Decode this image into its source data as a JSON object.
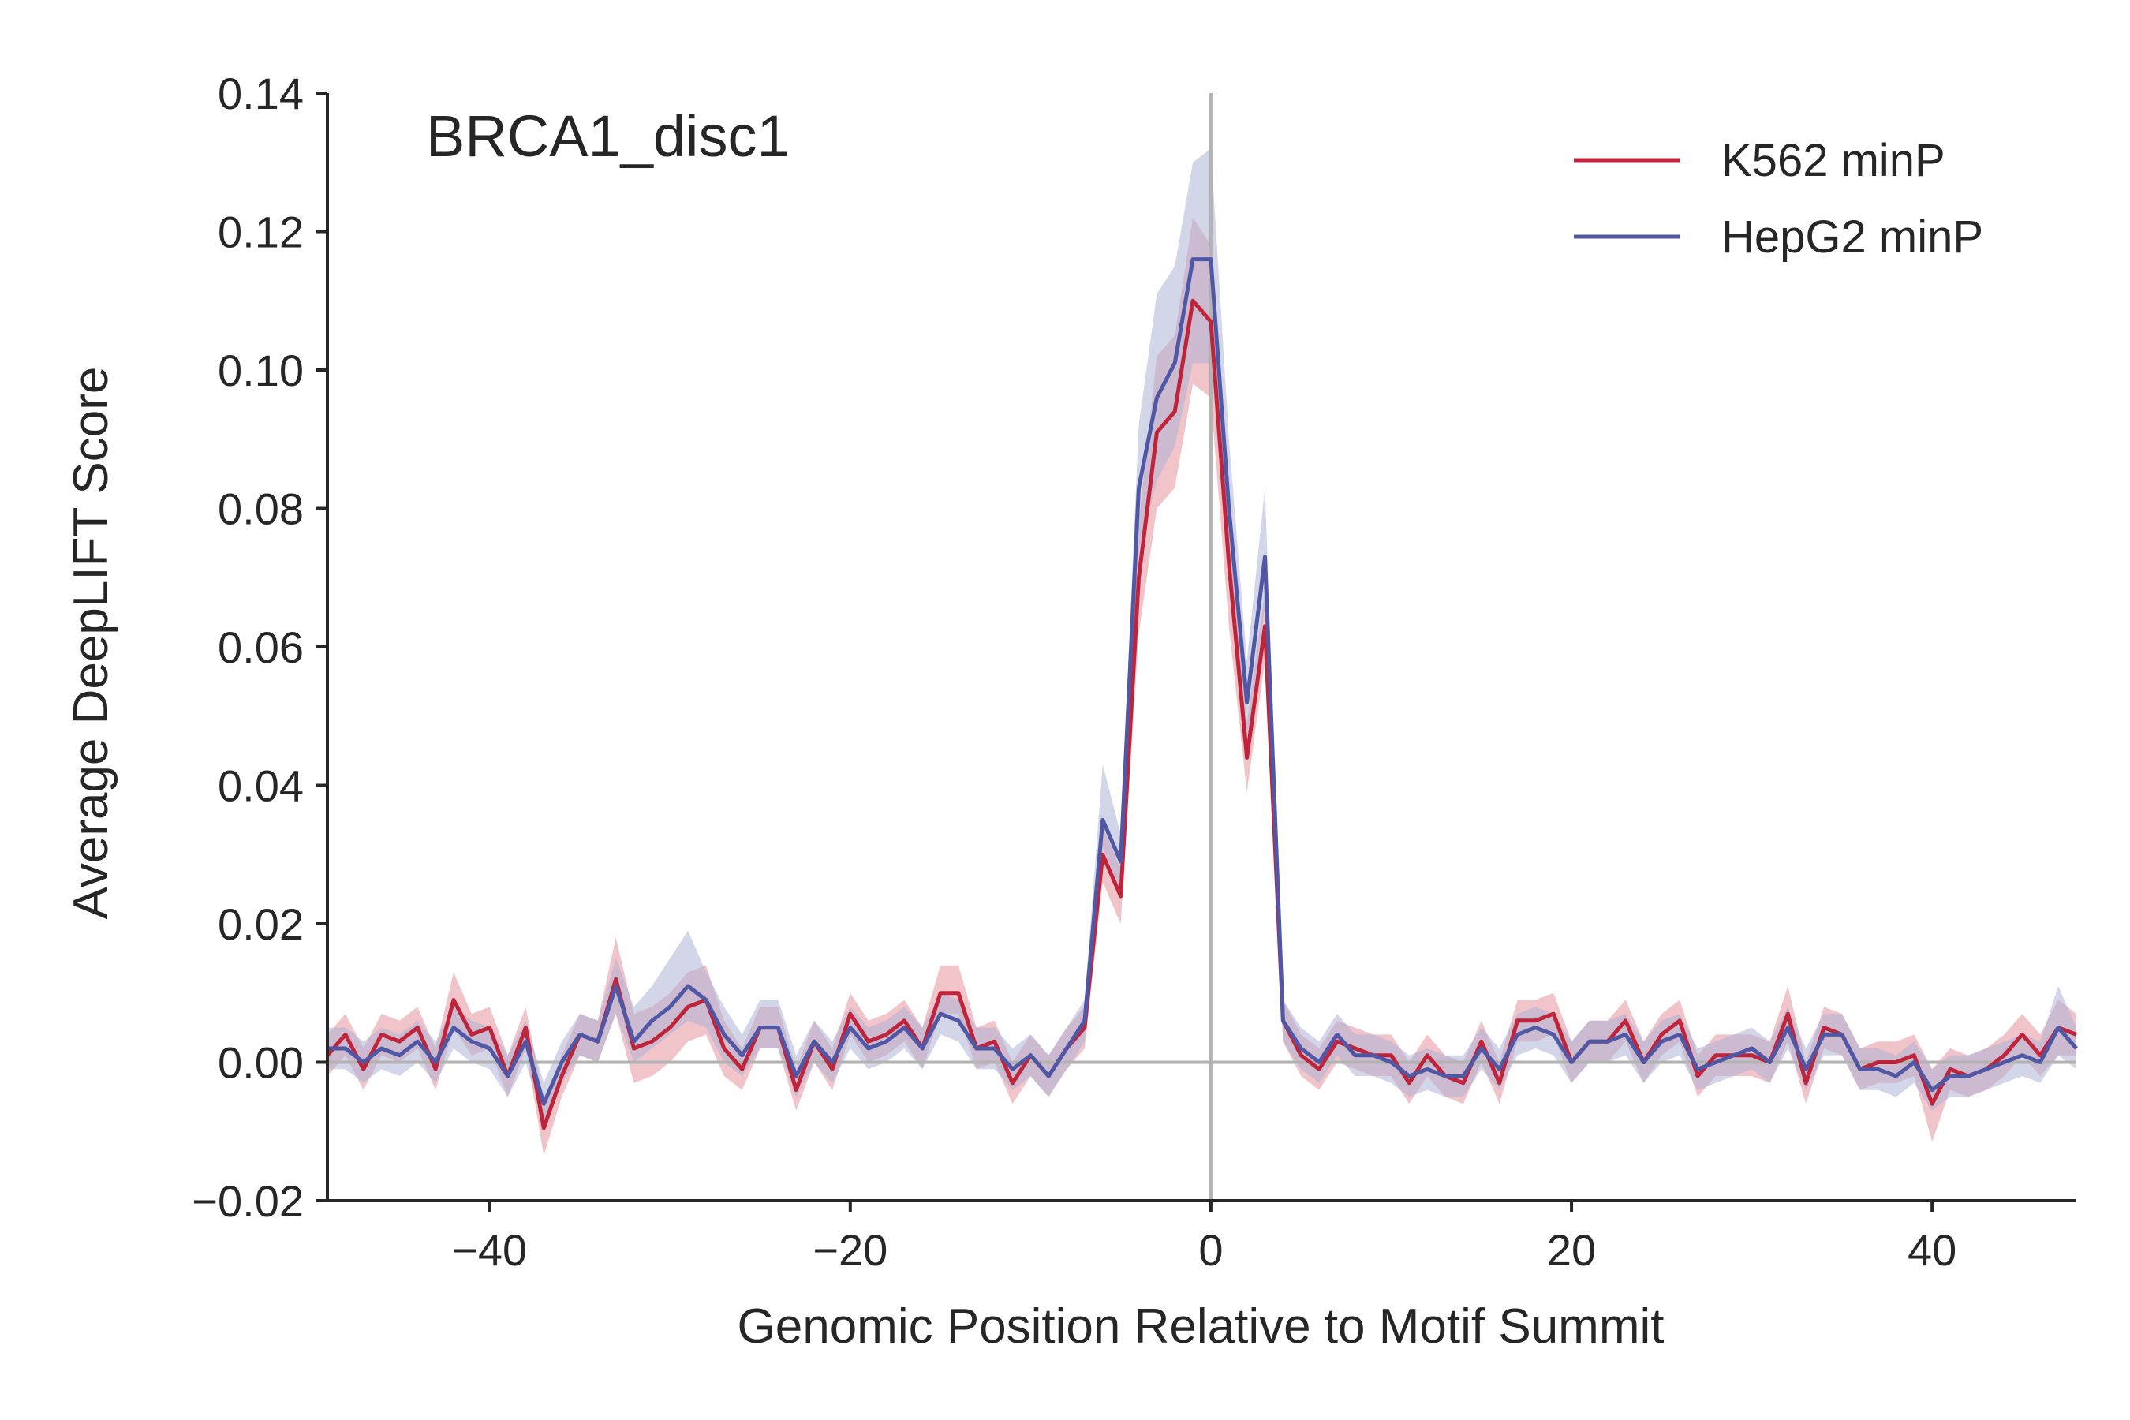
{
  "chart_data": {
    "type": "line",
    "title": "BRCA1_disc1",
    "xlabel": "Genomic Position Relative to Motif Summit",
    "ylabel": "Average DeepLIFT Score",
    "xlim": [
      -49,
      48
    ],
    "ylim": [
      -0.02,
      0.14
    ],
    "xticks": [
      -40,
      -20,
      0,
      20,
      40
    ],
    "xtick_labels": [
      "−40",
      "−20",
      "0",
      "20",
      "40"
    ],
    "yticks": [
      -0.02,
      0.0,
      0.02,
      0.04,
      0.06,
      0.08,
      0.1,
      0.12,
      0.14
    ],
    "ytick_labels": [
      "−0.02",
      "0.00",
      "0.02",
      "0.04",
      "0.06",
      "0.08",
      "0.10",
      "0.12",
      "0.14"
    ],
    "reference_lines": {
      "x": 0,
      "y": 0
    },
    "grid": false,
    "legend_position": "upper right",
    "x": [
      -49,
      -48,
      -47,
      -46,
      -45,
      -44,
      -43,
      -42,
      -41,
      -40,
      -39,
      -38,
      -37,
      -36,
      -35,
      -34,
      -33,
      -32,
      -31,
      -30,
      -29,
      -28,
      -27,
      -26,
      -25,
      -24,
      -23,
      -22,
      -21,
      -20,
      -19,
      -18,
      -17,
      -16,
      -15,
      -14,
      -13,
      -12,
      -11,
      -10,
      -9,
      -8,
      -7,
      -6,
      -5,
      -4,
      -3,
      -2,
      -1,
      0,
      1,
      2,
      3,
      4,
      5,
      6,
      7,
      8,
      9,
      10,
      11,
      12,
      13,
      14,
      15,
      16,
      17,
      18,
      19,
      20,
      21,
      22,
      23,
      24,
      25,
      26,
      27,
      28,
      29,
      30,
      31,
      32,
      33,
      34,
      35,
      36,
      37,
      38,
      39,
      40,
      41,
      42,
      43,
      44,
      45,
      46,
      47,
      48
    ],
    "series": [
      {
        "name": "K562 minP",
        "color": "#c0243a",
        "band_color": "#e3949c",
        "values": [
          0.001,
          0.004,
          -0.001,
          0.004,
          0.003,
          0.005,
          -0.001,
          0.009,
          0.004,
          0.005,
          -0.002,
          0.005,
          -0.0095,
          -0.002,
          0.004,
          0.003,
          0.012,
          0.002,
          0.003,
          0.005,
          0.008,
          0.009,
          0.002,
          -0.001,
          0.005,
          0.005,
          -0.004,
          0.003,
          -0.001,
          0.007,
          0.003,
          0.004,
          0.006,
          0.002,
          0.01,
          0.01,
          0.002,
          0.003,
          -0.003,
          0.001,
          -0.002,
          0.002,
          0.005,
          0.03,
          0.024,
          0.07,
          0.091,
          0.094,
          0.11,
          0.107,
          0.072,
          0.044,
          0.063,
          0.006,
          0.001,
          -0.001,
          0.003,
          0.002,
          0.001,
          0.001,
          -0.003,
          0.001,
          -0.002,
          -0.003,
          0.003,
          -0.003,
          0.006,
          0.006,
          0.007,
          0.0,
          0.003,
          0.003,
          0.006,
          0.0,
          0.004,
          0.006,
          -0.002,
          0.001,
          0.001,
          0.001,
          0.0,
          0.007,
          -0.003,
          0.005,
          0.004,
          -0.001,
          0.0,
          0.0,
          0.001,
          -0.006,
          -0.001,
          -0.002,
          -0.001,
          0.001,
          0.004,
          0.001,
          0.005,
          0.004
        ],
        "lower": [
          -0.002,
          0.001,
          -0.004,
          0.001,
          0.0,
          0.002,
          -0.004,
          0.005,
          0.001,
          0.002,
          -0.005,
          0.002,
          -0.0135,
          -0.005,
          0.001,
          0.0,
          0.007,
          -0.003,
          -0.002,
          0.0,
          0.003,
          0.004,
          -0.002,
          -0.004,
          0.002,
          0.002,
          -0.007,
          0.0,
          -0.004,
          0.004,
          0.0,
          0.001,
          0.003,
          -0.001,
          0.007,
          0.007,
          -0.001,
          0.0,
          -0.006,
          -0.002,
          -0.005,
          -0.001,
          0.002,
          0.026,
          0.02,
          0.062,
          0.08,
          0.083,
          0.098,
          0.096,
          0.063,
          0.039,
          0.058,
          0.003,
          -0.002,
          -0.004,
          0.0,
          -0.001,
          -0.002,
          -0.002,
          -0.006,
          -0.002,
          -0.005,
          -0.006,
          0.0,
          -0.006,
          0.003,
          0.003,
          0.004,
          -0.003,
          0.0,
          0.0,
          0.003,
          -0.003,
          0.001,
          0.003,
          -0.005,
          -0.002,
          -0.002,
          -0.002,
          -0.003,
          0.003,
          -0.006,
          0.002,
          0.001,
          -0.004,
          -0.003,
          -0.003,
          -0.002,
          -0.0115,
          -0.004,
          -0.005,
          -0.004,
          -0.002,
          0.001,
          -0.002,
          0.001,
          0.001
        ],
        "upper": [
          0.004,
          0.007,
          0.002,
          0.007,
          0.006,
          0.008,
          0.002,
          0.013,
          0.007,
          0.008,
          0.001,
          0.008,
          -0.0055,
          0.001,
          0.007,
          0.006,
          0.018,
          0.007,
          0.008,
          0.01,
          0.013,
          0.014,
          0.006,
          0.002,
          0.008,
          0.008,
          -0.001,
          0.006,
          0.002,
          0.01,
          0.006,
          0.007,
          0.009,
          0.005,
          0.014,
          0.014,
          0.005,
          0.006,
          0.0,
          0.004,
          0.001,
          0.005,
          0.008,
          0.034,
          0.028,
          0.078,
          0.102,
          0.105,
          0.122,
          0.118,
          0.081,
          0.049,
          0.068,
          0.009,
          0.004,
          0.002,
          0.006,
          0.005,
          0.004,
          0.004,
          0.0,
          0.004,
          0.001,
          0.0,
          0.006,
          0.0,
          0.009,
          0.009,
          0.01,
          0.003,
          0.006,
          0.006,
          0.009,
          0.003,
          0.007,
          0.009,
          0.001,
          0.004,
          0.004,
          0.004,
          0.003,
          0.011,
          0.0,
          0.008,
          0.007,
          0.002,
          0.003,
          0.003,
          0.004,
          -0.001,
          0.002,
          0.001,
          0.002,
          0.004,
          0.007,
          0.004,
          0.009,
          0.007
        ]
      },
      {
        "name": "HepG2 minP",
        "color": "#5058a5",
        "band_color": "#aeb2d6",
        "values": [
          0.002,
          0.002,
          0.0,
          0.002,
          0.001,
          0.003,
          0.0,
          0.005,
          0.003,
          0.002,
          -0.002,
          0.003,
          -0.006,
          0.0,
          0.004,
          0.003,
          0.011,
          0.003,
          0.006,
          0.008,
          0.011,
          0.009,
          0.004,
          0.001,
          0.005,
          0.005,
          -0.002,
          0.003,
          0.0,
          0.005,
          0.002,
          0.003,
          0.005,
          0.002,
          0.007,
          0.006,
          0.002,
          0.002,
          -0.001,
          0.001,
          -0.002,
          0.002,
          0.006,
          0.035,
          0.029,
          0.083,
          0.096,
          0.101,
          0.116,
          0.116,
          0.08,
          0.052,
          0.073,
          0.006,
          0.002,
          0.0,
          0.004,
          0.001,
          0.001,
          0.0,
          -0.002,
          -0.001,
          -0.002,
          -0.002,
          0.002,
          -0.001,
          0.004,
          0.005,
          0.004,
          0.0,
          0.003,
          0.003,
          0.004,
          0.0,
          0.003,
          0.004,
          -0.001,
          0.0,
          0.001,
          0.002,
          0.0,
          0.005,
          -0.001,
          0.004,
          0.004,
          -0.001,
          -0.001,
          -0.002,
          0.0,
          -0.004,
          -0.002,
          -0.002,
          -0.001,
          0.0,
          0.001,
          0.0,
          0.005,
          0.002
        ],
        "lower": [
          -0.001,
          -0.001,
          -0.003,
          -0.001,
          -0.002,
          0.0,
          -0.003,
          0.002,
          0.0,
          -0.001,
          -0.005,
          0.0,
          -0.009,
          -0.003,
          0.001,
          0.0,
          0.007,
          0.0,
          0.002,
          0.004,
          0.006,
          0.005,
          0.0,
          -0.002,
          0.002,
          0.002,
          -0.005,
          0.0,
          -0.003,
          0.002,
          -0.001,
          0.0,
          0.002,
          -0.001,
          0.004,
          0.003,
          -0.001,
          -0.001,
          -0.004,
          -0.002,
          -0.005,
          -0.001,
          0.003,
          0.031,
          0.025,
          0.074,
          0.084,
          0.089,
          0.101,
          0.101,
          0.07,
          0.046,
          0.066,
          0.003,
          -0.001,
          -0.003,
          0.001,
          -0.002,
          -0.002,
          -0.003,
          -0.005,
          -0.004,
          -0.005,
          -0.005,
          -0.001,
          -0.004,
          0.001,
          0.002,
          0.001,
          -0.003,
          0.0,
          0.0,
          0.001,
          -0.003,
          0.0,
          0.001,
          -0.004,
          -0.003,
          -0.002,
          -0.001,
          -0.003,
          0.002,
          -0.004,
          0.001,
          0.001,
          -0.004,
          -0.004,
          -0.005,
          -0.003,
          -0.007,
          -0.005,
          -0.005,
          -0.004,
          -0.003,
          -0.002,
          -0.003,
          0.001,
          -0.001
        ],
        "upper": [
          0.005,
          0.005,
          0.003,
          0.005,
          0.004,
          0.006,
          0.003,
          0.008,
          0.006,
          0.005,
          0.001,
          0.006,
          -0.003,
          0.003,
          0.007,
          0.006,
          0.015,
          0.008,
          0.011,
          0.015,
          0.019,
          0.013,
          0.008,
          0.004,
          0.009,
          0.009,
          0.001,
          0.006,
          0.003,
          0.008,
          0.005,
          0.006,
          0.008,
          0.005,
          0.01,
          0.009,
          0.005,
          0.005,
          0.002,
          0.004,
          0.001,
          0.005,
          0.009,
          0.043,
          0.033,
          0.092,
          0.111,
          0.115,
          0.13,
          0.132,
          0.09,
          0.058,
          0.083,
          0.009,
          0.005,
          0.003,
          0.007,
          0.004,
          0.004,
          0.003,
          0.001,
          0.002,
          0.001,
          0.001,
          0.005,
          0.002,
          0.007,
          0.008,
          0.007,
          0.003,
          0.006,
          0.006,
          0.007,
          0.003,
          0.006,
          0.007,
          0.002,
          0.003,
          0.004,
          0.005,
          0.003,
          0.008,
          0.002,
          0.007,
          0.007,
          0.002,
          0.002,
          0.001,
          0.003,
          -0.001,
          0.001,
          0.001,
          0.002,
          0.003,
          0.004,
          0.003,
          0.011,
          0.005
        ]
      }
    ]
  }
}
